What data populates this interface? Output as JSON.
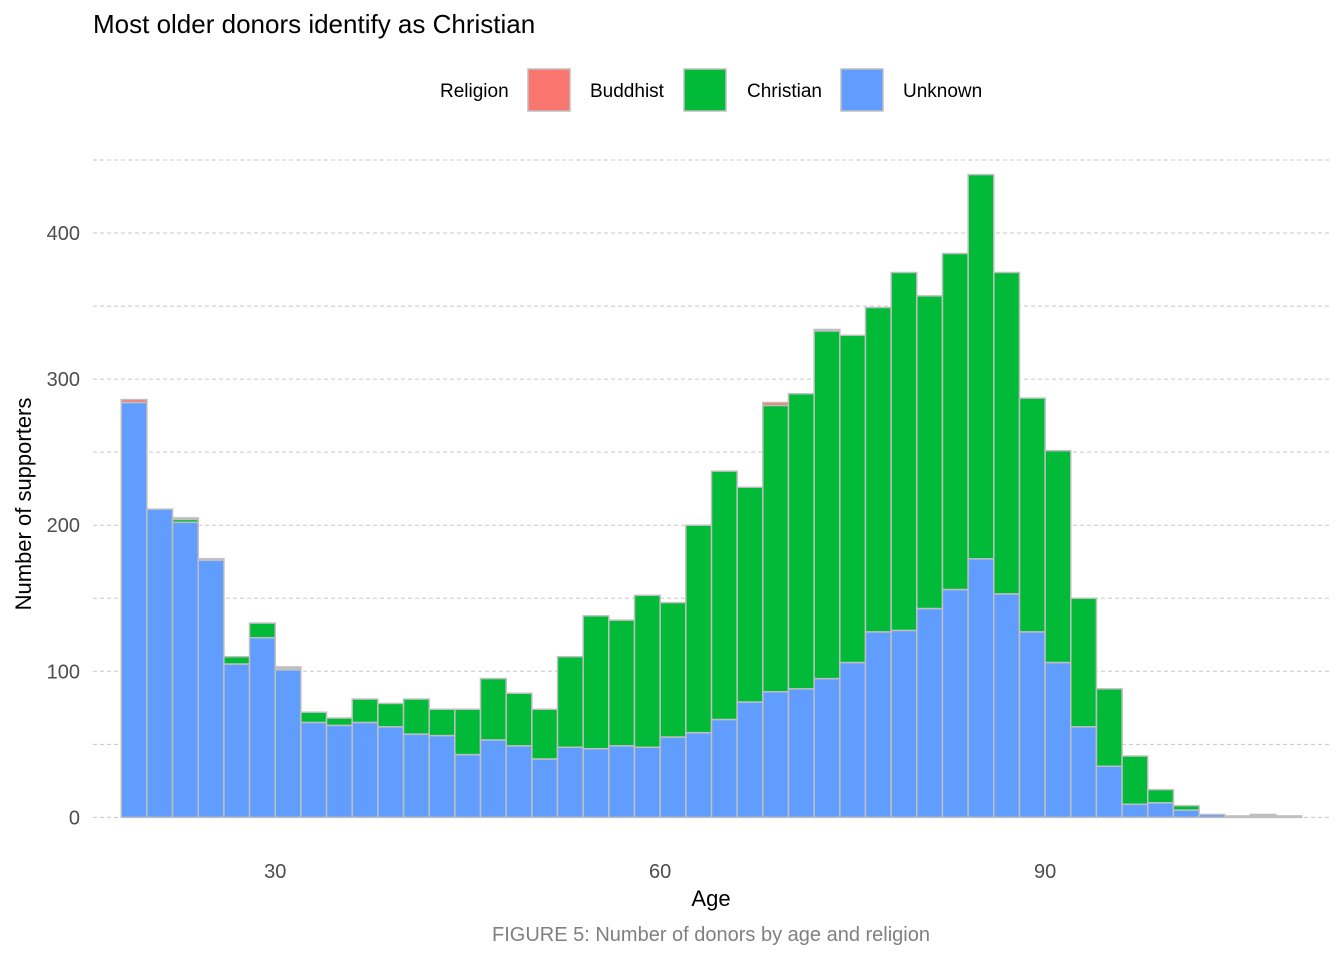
{
  "chart_data": {
    "type": "bar",
    "stacked": true,
    "title": "Most older donors identify as Christian",
    "xlabel": "Age",
    "ylabel": "Number of supporters",
    "caption": "FIGURE 5: Number of donors by age and religion",
    "legend_title": "Religion",
    "legend_position": "top",
    "grid": true,
    "bin_width": 2,
    "xlim": [
      15.8,
      112.2
    ],
    "ylim": [
      -10,
      450
    ],
    "x_ticks": [
      30,
      60,
      90
    ],
    "y_ticks": [
      0,
      100,
      200,
      300,
      400
    ],
    "x": [
      19,
      21,
      23,
      25,
      27,
      29,
      31,
      33,
      35,
      37,
      39,
      41,
      43,
      45,
      47,
      49,
      51,
      53,
      55,
      57,
      59,
      61,
      63,
      65,
      67,
      69,
      71,
      73,
      75,
      77,
      79,
      81,
      83,
      85,
      87,
      89,
      91,
      93,
      95,
      97,
      99,
      101,
      103,
      105,
      107,
      109
    ],
    "series": [
      {
        "name": "Unknown",
        "color": "#619cff",
        "values": [
          284,
          211,
          202,
          176,
          105,
          123,
          101,
          65,
          63,
          65,
          62,
          57,
          56,
          43,
          53,
          49,
          40,
          48,
          47,
          49,
          48,
          55,
          58,
          67,
          79,
          86,
          88,
          95,
          106,
          127,
          128,
          143,
          156,
          177,
          153,
          127,
          106,
          62,
          35,
          9,
          10,
          5,
          2,
          1,
          1,
          1
        ]
      },
      {
        "name": "Christian",
        "color": "#00ba38",
        "values": [
          0,
          0,
          2,
          0,
          5,
          10,
          1,
          7,
          5,
          16,
          16,
          24,
          18,
          31,
          42,
          36,
          34,
          62,
          91,
          86,
          104,
          92,
          142,
          170,
          147,
          196,
          202,
          238,
          224,
          222,
          245,
          214,
          230,
          263,
          220,
          160,
          145,
          88,
          53,
          33,
          9,
          3,
          0,
          0,
          1,
          0
        ]
      },
      {
        "name": "Buddhist",
        "color": "#f8766d",
        "values": [
          2,
          0,
          1,
          1,
          0,
          0,
          1,
          0,
          0,
          0,
          0,
          0,
          0,
          0,
          0,
          0,
          0,
          0,
          0,
          0,
          0,
          0,
          0,
          0,
          0,
          2,
          0,
          1,
          0,
          0,
          0,
          0,
          0,
          0,
          0,
          0,
          0,
          0,
          0,
          0,
          0,
          0,
          0,
          0,
          0,
          0
        ]
      }
    ]
  },
  "legend": {
    "title": "Religion",
    "items": [
      {
        "label": "Buddhist",
        "color": "#f8766d"
      },
      {
        "label": "Christian",
        "color": "#00ba38"
      },
      {
        "label": "Unknown",
        "color": "#619cff"
      }
    ]
  },
  "colors": {
    "bar_outline": "#bfbfbf",
    "grid": "#c8c8c8"
  }
}
